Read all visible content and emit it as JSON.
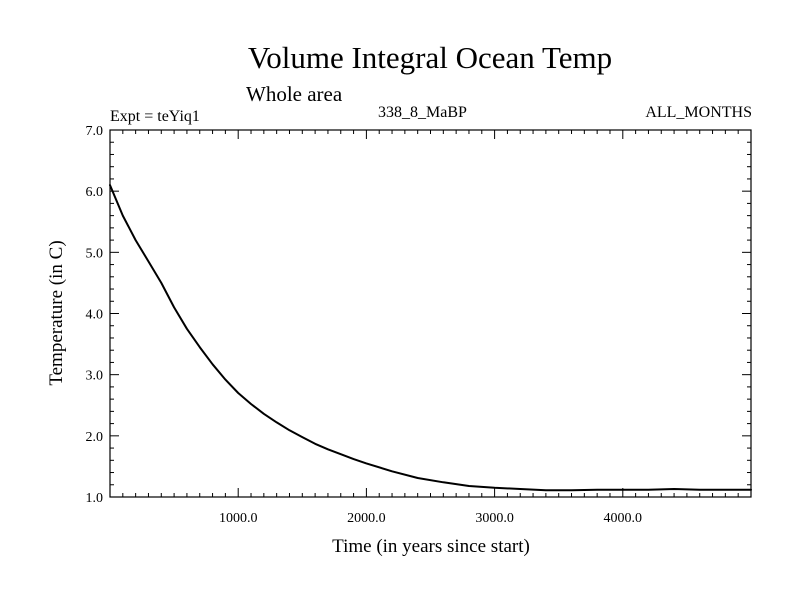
{
  "chart_data": {
    "type": "line",
    "title": "Volume Integral Ocean Temp",
    "subtitle": "Whole area",
    "annotations": {
      "experiment": "Expt = teYiq1",
      "period": "338_8_MaBP",
      "months": "ALL_MONTHS"
    },
    "xlabel": "Time (in years since start)",
    "ylabel": "Temperature (in C)",
    "xlim": [
      0,
      5000
    ],
    "ylim": [
      1.0,
      7.0
    ],
    "x_ticks": [
      1000,
      2000,
      3000,
      4000
    ],
    "x_tick_labels": [
      "1000.0",
      "2000.0",
      "3000.0",
      "4000.0"
    ],
    "y_ticks": [
      1.0,
      2.0,
      3.0,
      4.0,
      5.0,
      6.0,
      7.0
    ],
    "y_tick_labels": [
      "1.0",
      "2.0",
      "3.0",
      "4.0",
      "5.0",
      "6.0",
      "7.0"
    ],
    "grid": false,
    "series": [
      {
        "name": "Volume integral ocean temperature",
        "color": "#000000",
        "x": [
          0,
          100,
          200,
          300,
          400,
          500,
          600,
          700,
          800,
          900,
          1000,
          1100,
          1200,
          1300,
          1400,
          1500,
          1600,
          1700,
          1800,
          1900,
          2000,
          2200,
          2400,
          2600,
          2800,
          3000,
          3200,
          3400,
          3600,
          3800,
          4000,
          4200,
          4400,
          4600,
          4800,
          5000
        ],
        "values": [
          6.1,
          5.6,
          5.2,
          4.85,
          4.5,
          4.1,
          3.75,
          3.45,
          3.17,
          2.92,
          2.7,
          2.52,
          2.36,
          2.22,
          2.09,
          1.98,
          1.87,
          1.78,
          1.7,
          1.62,
          1.55,
          1.42,
          1.31,
          1.24,
          1.18,
          1.15,
          1.13,
          1.11,
          1.11,
          1.12,
          1.12,
          1.12,
          1.13,
          1.12,
          1.12,
          1.12
        ]
      }
    ]
  }
}
